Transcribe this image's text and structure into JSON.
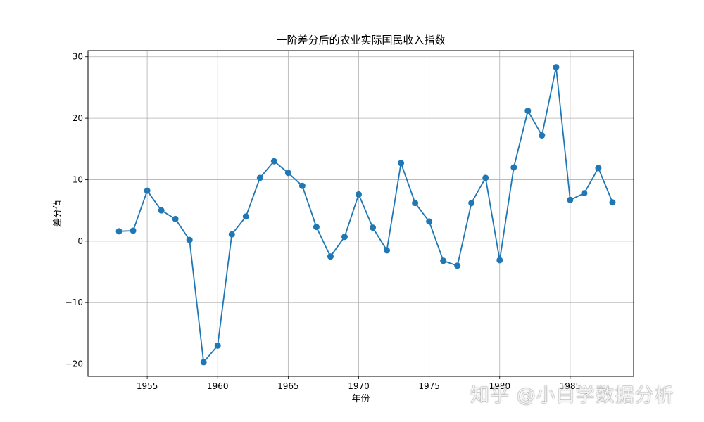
{
  "chart_data": {
    "type": "line",
    "title": "一阶差分后的农业实际国民收入指数",
    "xlabel": "年份",
    "ylabel": "差分值",
    "xlim": [
      1950.8,
      1989.5
    ],
    "ylim": [
      -22,
      31
    ],
    "xticks": [
      1955,
      1960,
      1965,
      1970,
      1975,
      1980,
      1985
    ],
    "xtick_labels": [
      "1955",
      "1960",
      "1965",
      "1970",
      "1975",
      "1980",
      "1985"
    ],
    "yticks": [
      -20,
      -10,
      0,
      10,
      20,
      30
    ],
    "ytick_labels": [
      "−20",
      "−10",
      "0",
      "10",
      "20",
      "30"
    ],
    "grid": true,
    "color": "#1f77b4",
    "marker": "circle",
    "x": [
      1953,
      1954,
      1955,
      1956,
      1957,
      1958,
      1959,
      1960,
      1961,
      1962,
      1963,
      1964,
      1965,
      1966,
      1967,
      1968,
      1969,
      1970,
      1971,
      1972,
      1973,
      1974,
      1975,
      1976,
      1977,
      1978,
      1979,
      1980,
      1981,
      1982,
      1983,
      1984,
      1985,
      1986,
      1987,
      1988
    ],
    "y": [
      1.6,
      1.7,
      8.2,
      5.0,
      3.6,
      0.2,
      -19.7,
      -17.0,
      1.1,
      4.0,
      10.3,
      13.0,
      11.1,
      9.0,
      2.3,
      -2.5,
      0.7,
      7.6,
      2.2,
      -1.5,
      12.7,
      6.2,
      3.2,
      -3.2,
      -4.0,
      6.2,
      10.3,
      -3.1,
      12.0,
      21.2,
      17.2,
      28.3,
      6.7,
      7.8,
      11.9,
      6.3
    ]
  },
  "watermark": {
    "text": "知乎 @小白学数据分析"
  }
}
